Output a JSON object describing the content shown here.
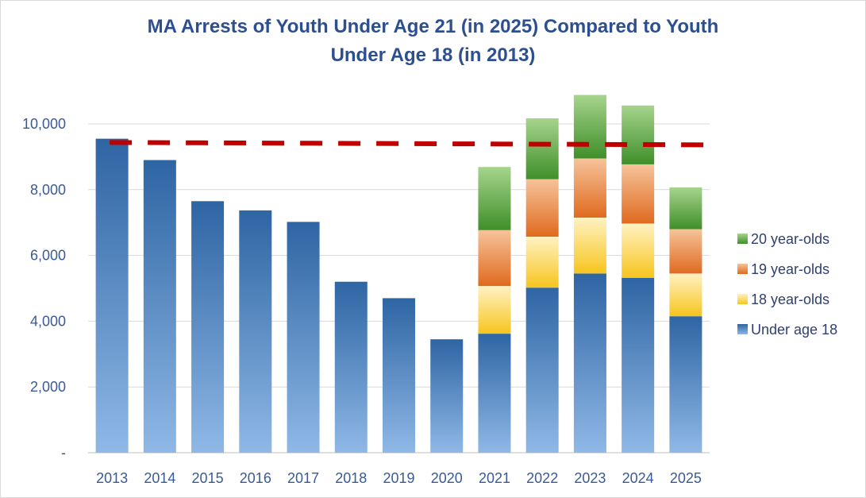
{
  "chart_data": {
    "type": "bar",
    "stacked": true,
    "title_lines": [
      "MA Arrests of Youth Under Age 21 (in 2025) Compared to Youth",
      "Under Age 18 (in 2013)"
    ],
    "categories": [
      "2013",
      "2014",
      "2015",
      "2016",
      "2017",
      "2018",
      "2019",
      "2020",
      "2021",
      "2022",
      "2023",
      "2024",
      "2025"
    ],
    "series": [
      {
        "name": "Under age 18",
        "color": "#2e65a3",
        "color_light": "#8fb8e6",
        "values": [
          9550,
          8900,
          7650,
          7370,
          7020,
          5200,
          4700,
          3450,
          3620,
          5020,
          5450,
          5320,
          4150
        ]
      },
      {
        "name": "18 year-olds",
        "color": "#f7c51e",
        "color_light": "#fff2c2",
        "values": [
          0,
          0,
          0,
          0,
          0,
          0,
          0,
          0,
          1450,
          1550,
          1700,
          1650,
          1300
        ]
      },
      {
        "name": "19 year-olds",
        "color": "#e06a1f",
        "color_light": "#f6c39a",
        "values": [
          0,
          0,
          0,
          0,
          0,
          0,
          0,
          0,
          1700,
          1750,
          1800,
          1800,
          1350
        ]
      },
      {
        "name": "20 year-olds",
        "color": "#3f8f2a",
        "color_light": "#a6d48c",
        "values": [
          0,
          0,
          0,
          0,
          0,
          0,
          0,
          0,
          1920,
          1850,
          1930,
          1790,
          1270
        ]
      }
    ],
    "legend_order": [
      "20 year-olds",
      "19 year-olds",
      "18 year-olds",
      "Under age 18"
    ],
    "reference_line": {
      "value": 9400,
      "style": "dashed",
      "color": "#c00000"
    },
    "y_ticks": [
      0,
      2000,
      4000,
      6000,
      8000,
      10000
    ],
    "y_tick_labels": [
      "-",
      "2,000",
      "4,000",
      "6,000",
      "8,000",
      "10,000"
    ],
    "ylim": [
      0,
      11000
    ],
    "xlabel": "",
    "ylabel": "",
    "grid": true,
    "legend_position": "right"
  }
}
